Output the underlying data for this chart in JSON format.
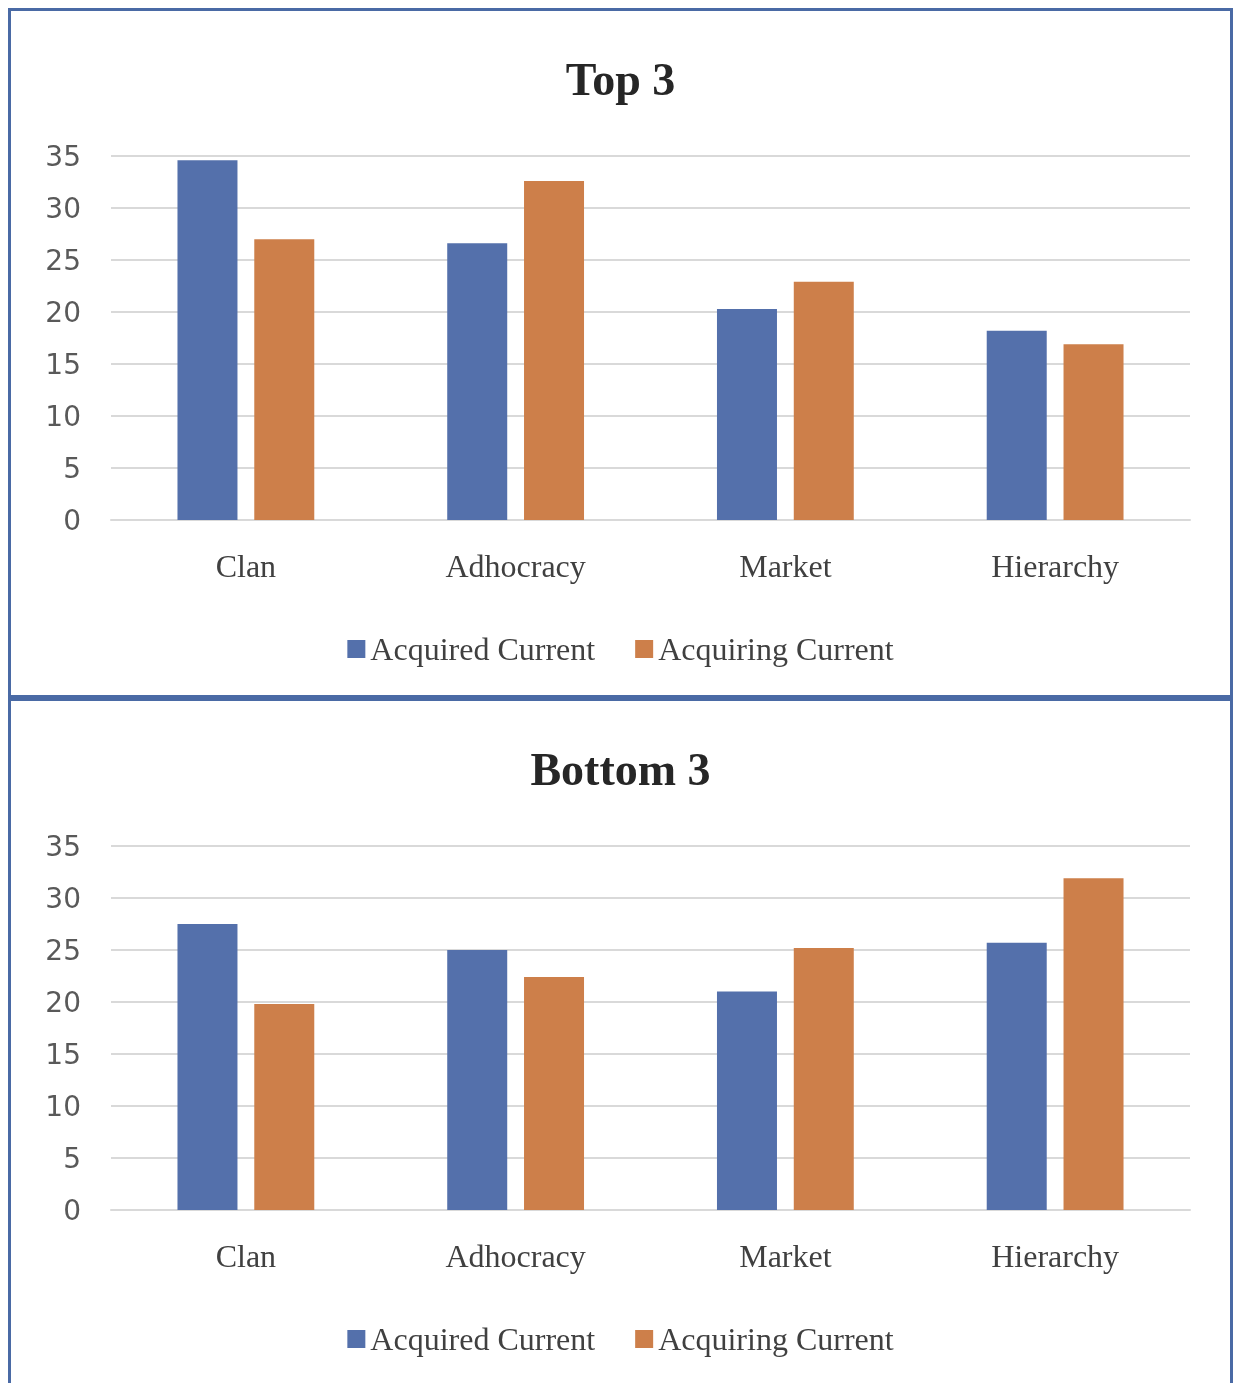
{
  "chart_data": [
    {
      "type": "bar",
      "title": "Top 3",
      "categories": [
        "Clan",
        "Adhocracy",
        "Market",
        "Hierarchy"
      ],
      "series": [
        {
          "name": "Acquired Current",
          "color": "#5470ab",
          "values": [
            34.6,
            26.6,
            20.3,
            18.2
          ]
        },
        {
          "name": "Acquiring Current",
          "color": "#cd7f4a",
          "values": [
            27.0,
            32.6,
            22.9,
            16.9
          ]
        }
      ],
      "ylim": [
        0,
        35
      ],
      "yticks": [
        0,
        5,
        10,
        15,
        20,
        25,
        30,
        35
      ],
      "grid": "y",
      "legend": "bottom"
    },
    {
      "type": "bar",
      "title": "Bottom 3",
      "categories": [
        "Clan",
        "Adhocracy",
        "Market",
        "Hierarchy"
      ],
      "series": [
        {
          "name": "Acquired Current",
          "color": "#5470ab",
          "values": [
            27.5,
            25.0,
            21.0,
            25.7
          ]
        },
        {
          "name": "Acquiring Current",
          "color": "#cd7f4a",
          "values": [
            19.8,
            22.4,
            25.2,
            31.9
          ]
        }
      ],
      "ylim": [
        0,
        35
      ],
      "yticks": [
        0,
        5,
        10,
        15,
        20,
        25,
        30,
        35
      ],
      "grid": "y",
      "legend": "bottom"
    }
  ]
}
